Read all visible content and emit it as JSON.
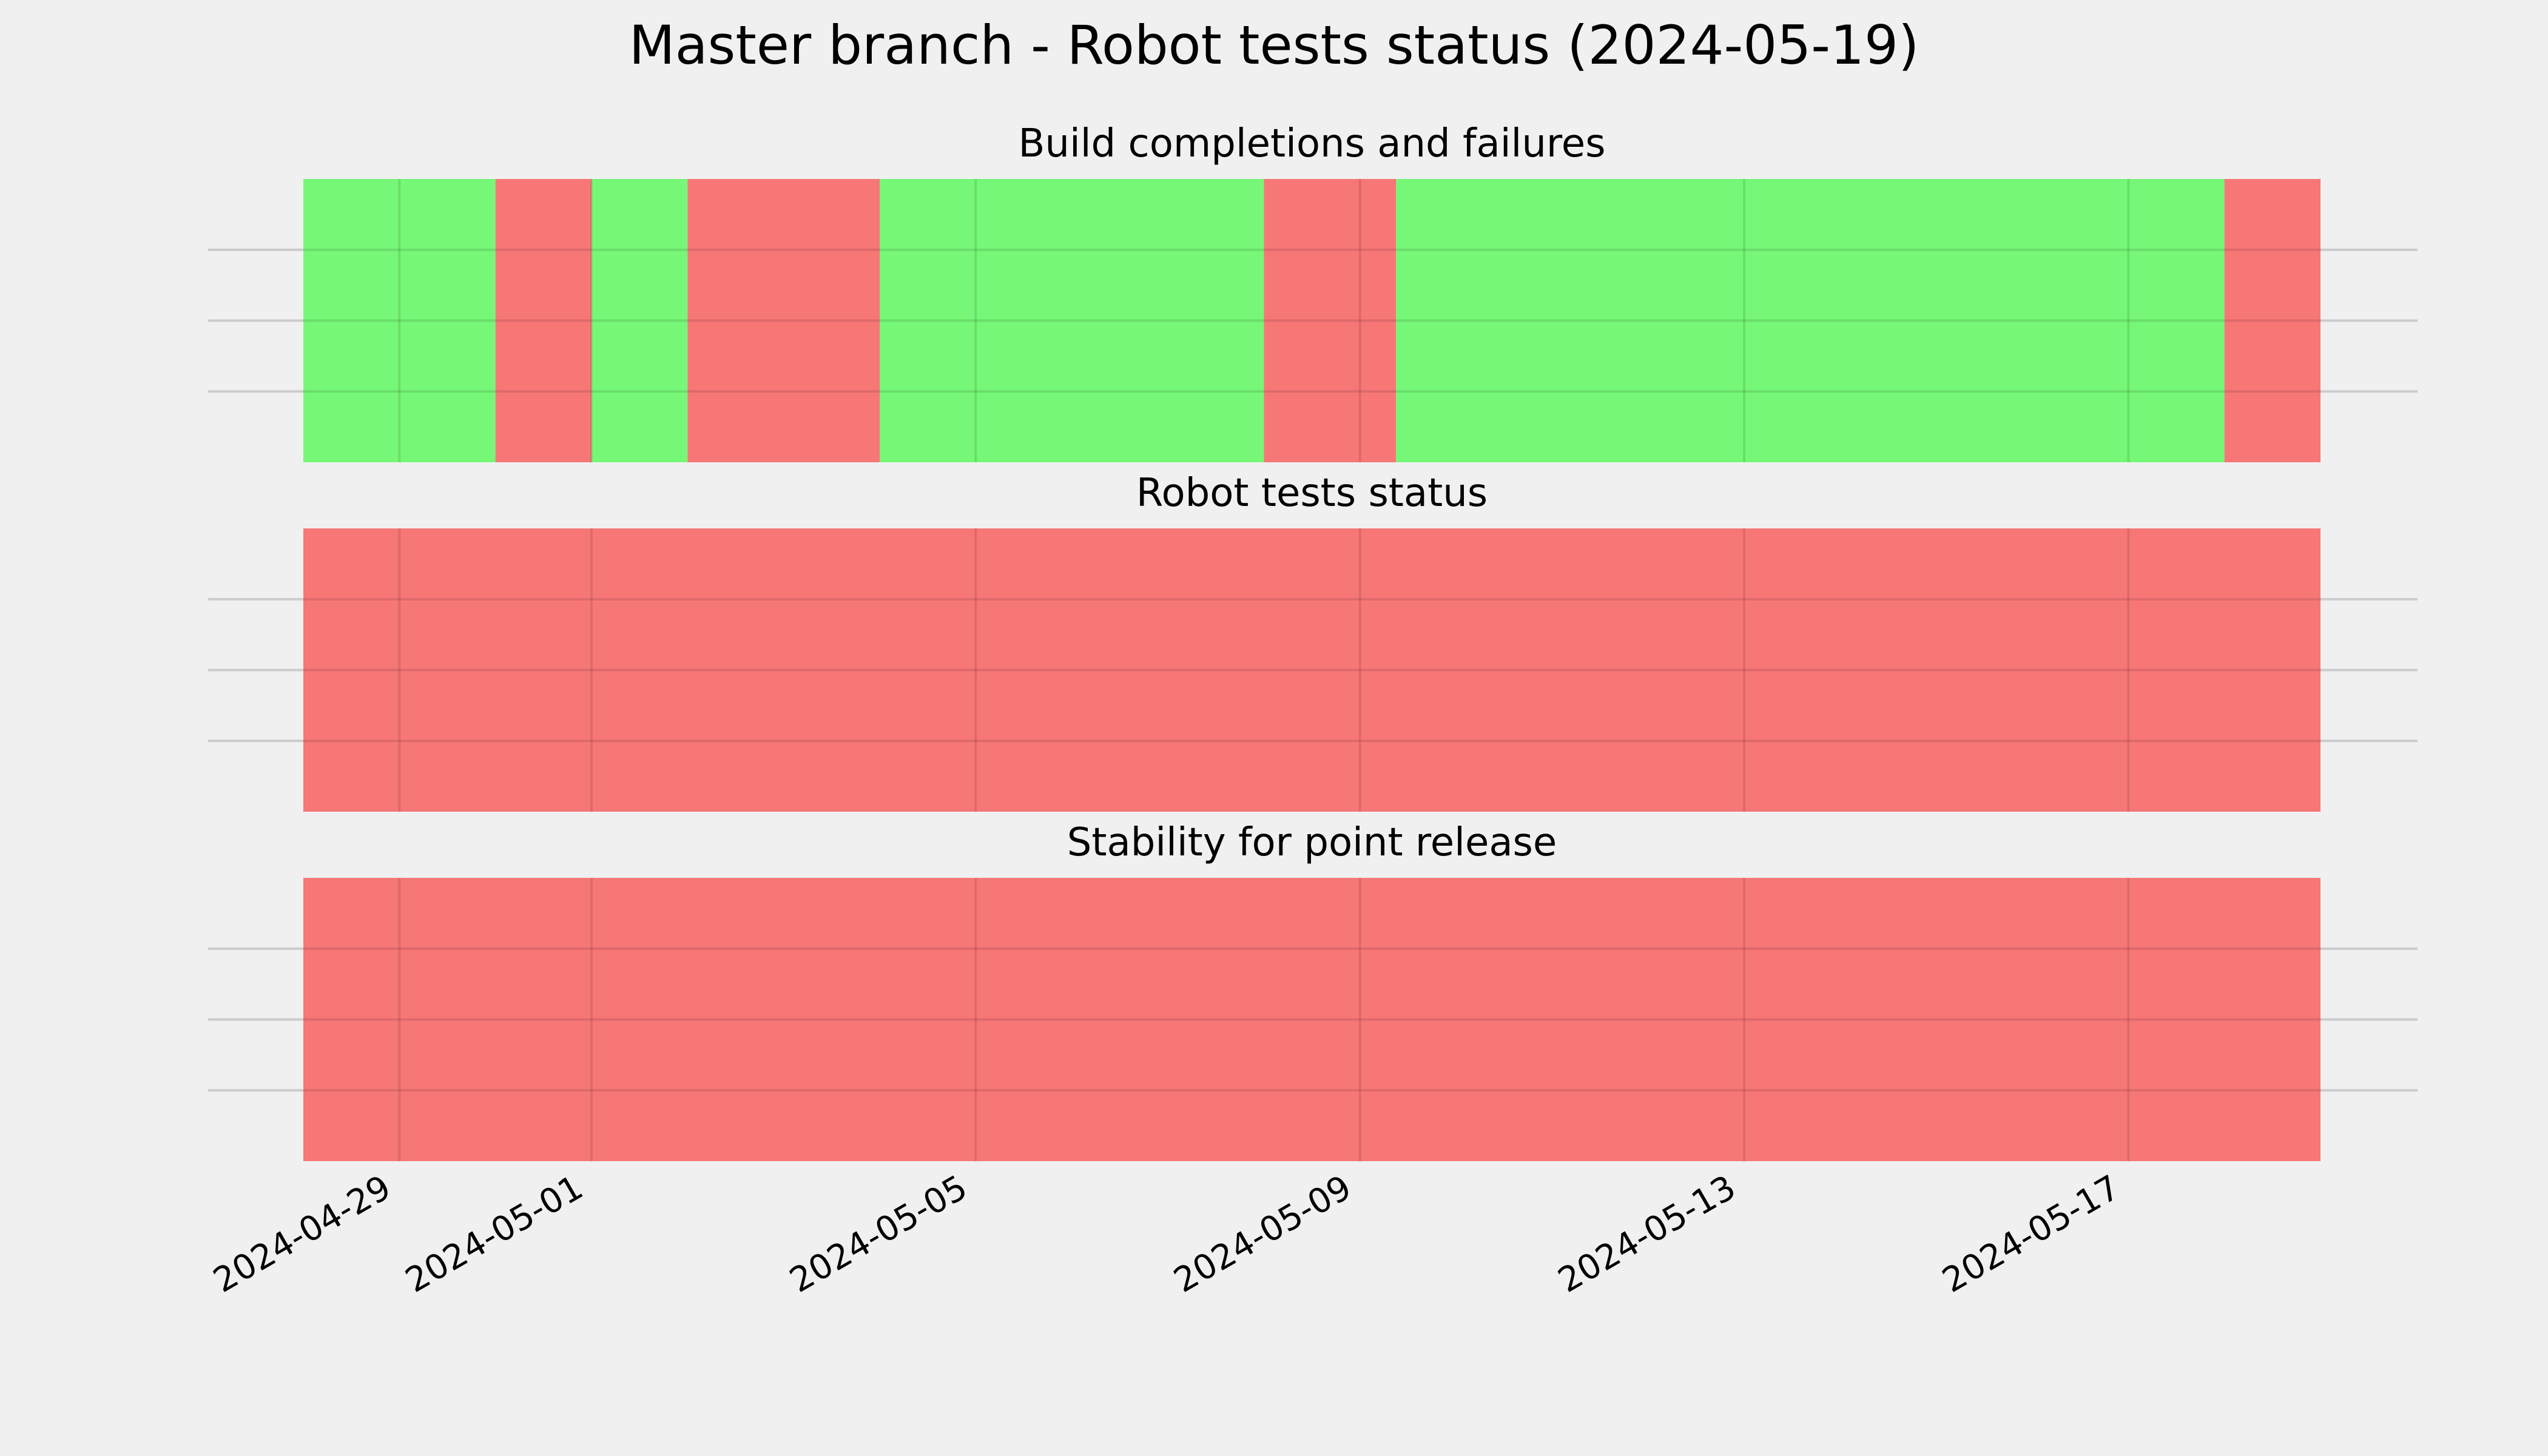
{
  "chart_data": {
    "type": "timeline",
    "title": "Master branch - Robot tests status (2024-05-19)",
    "x_axis": {
      "type": "date",
      "range": [
        "2024-04-28",
        "2024-05-19"
      ],
      "tick_labels": [
        "2024-04-29",
        "2024-05-01",
        "2024-05-05",
        "2024-05-09",
        "2024-05-13",
        "2024-05-17"
      ]
    },
    "grid": true,
    "colors": {
      "pass": "#77f777",
      "fail": "#f77777",
      "background": "#f0f0f0"
    },
    "panels": [
      {
        "title": "Build completions and failures",
        "segments": [
          {
            "start": "2024-04-28",
            "end": "2024-04-30",
            "status": "pass"
          },
          {
            "start": "2024-04-30",
            "end": "2024-05-01",
            "status": "fail"
          },
          {
            "start": "2024-05-01",
            "end": "2024-05-02",
            "status": "pass"
          },
          {
            "start": "2024-05-02",
            "end": "2024-05-04",
            "status": "fail"
          },
          {
            "start": "2024-05-04",
            "end": "2024-05-08",
            "status": "pass"
          },
          {
            "start": "2024-05-08",
            "end": "2024-05-09 09:00",
            "status": "fail"
          },
          {
            "start": "2024-05-09 09:00",
            "end": "2024-05-18",
            "status": "pass"
          },
          {
            "start": "2024-05-18",
            "end": "2024-05-19",
            "status": "fail"
          }
        ]
      },
      {
        "title": "Robot tests status",
        "segments": [
          {
            "start": "2024-04-28",
            "end": "2024-05-19",
            "status": "fail"
          }
        ]
      },
      {
        "title": "Stability for point release",
        "segments": [
          {
            "start": "2024-04-28",
            "end": "2024-05-19",
            "status": "fail"
          }
        ]
      }
    ]
  }
}
